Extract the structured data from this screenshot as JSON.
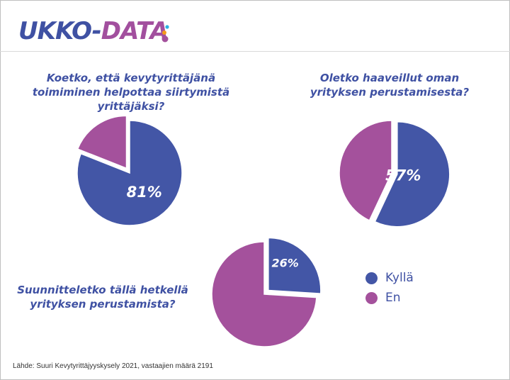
{
  "logo": {
    "part1": "UKKO-",
    "part2": "DATA"
  },
  "colors": {
    "kylla": "#4356a6",
    "en": "#a4519c",
    "logo_dot_blue": "#2bb0e3",
    "logo_dot_orange": "#f59a1b",
    "logo_dot_purple": "#a4519c"
  },
  "legend": {
    "position": "right",
    "items": [
      {
        "label": "Kyllä",
        "color": "#4356a6"
      },
      {
        "label": "En",
        "color": "#a4519c"
      }
    ]
  },
  "chart_data": [
    {
      "type": "pie",
      "title": "Koetko, että kevytyrittäjänä toimiminen helpottaa siirtymistä yrittäjäksi?",
      "slices": [
        {
          "name": "Kyllä",
          "value": 81,
          "label": "81%",
          "color": "#4356a6",
          "exploded": false
        },
        {
          "name": "En",
          "value": 19,
          "label": "",
          "color": "#a4519c",
          "exploded": true
        }
      ]
    },
    {
      "type": "pie",
      "title": "Oletko haaveillut oman yrityksen perustamisesta?",
      "slices": [
        {
          "name": "Kyllä",
          "value": 57,
          "label": "57%",
          "color": "#4356a6",
          "exploded": true
        },
        {
          "name": "En",
          "value": 43,
          "label": "",
          "color": "#a4519c",
          "exploded": false
        }
      ]
    },
    {
      "type": "pie",
      "title": "Suunnitteletko tällä hetkellä yrityksen perustamista?",
      "slices": [
        {
          "name": "Kyllä",
          "value": 26,
          "label": "26%",
          "color": "#4356a6",
          "exploded": true
        },
        {
          "name": "En",
          "value": 74,
          "label": "",
          "color": "#a4519c",
          "exploded": false
        }
      ]
    }
  ],
  "source": "Lähde: Suuri Kevytyrittäjyyskysely 2021, vastaajien määrä 2191"
}
